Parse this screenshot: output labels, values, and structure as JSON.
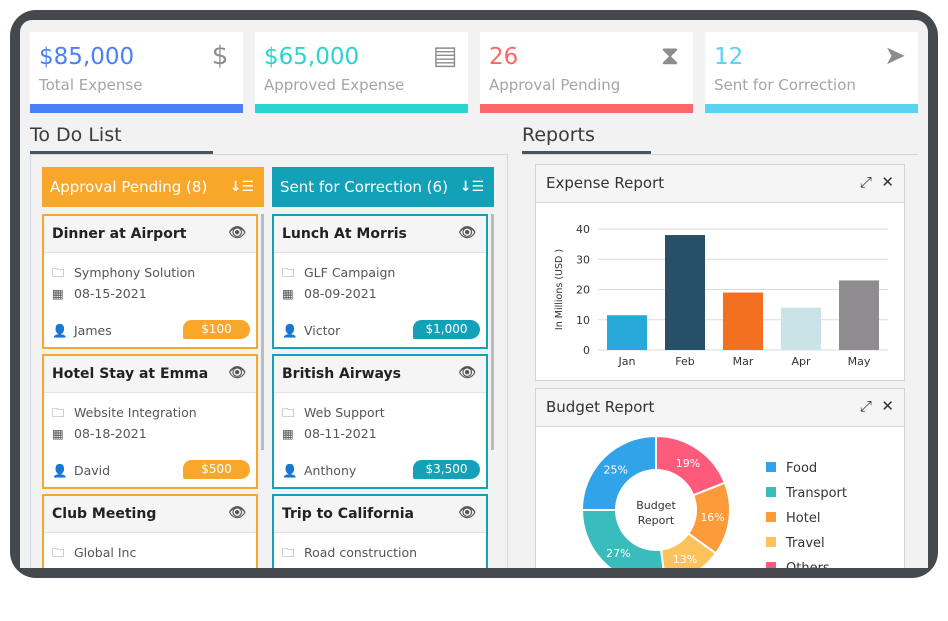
{
  "stats": [
    {
      "value": "$85,000",
      "label": "Total Expense",
      "color": "#4a80f5",
      "icon": "dollar-icon"
    },
    {
      "value": "$65,000",
      "label": "Approved Expense",
      "color": "#2ad4d0",
      "icon": "receipt-icon"
    },
    {
      "value": "26",
      "label": "Approval Pending",
      "color": "#fb6867",
      "icon": "hourglass-icon"
    },
    {
      "value": "12",
      "label": "Sent for Correction",
      "color": "#5ad3f2",
      "icon": "paper-plane-icon"
    }
  ],
  "todo": {
    "title": "To Do List",
    "columns": [
      {
        "title": "Approval Pending (8)",
        "color": "#f8a72b",
        "cards": [
          {
            "title": "Dinner at Airport",
            "project": "Symphony Solution",
            "date": "08-15-2021",
            "person": "James",
            "amount": "$100"
          },
          {
            "title": "Hotel Stay at Emma",
            "project": "Website Integration",
            "date": "08-18-2021",
            "person": "David",
            "amount": "$500"
          },
          {
            "title": "Club Meeting",
            "project": "Global Inc",
            "date": "",
            "person": "",
            "amount": ""
          }
        ]
      },
      {
        "title": "Sent for Correction (6)",
        "color": "#13a1b8",
        "cards": [
          {
            "title": "Lunch At Morris",
            "project": "GLF Campaign",
            "date": "08-09-2021",
            "person": "Victor",
            "amount": "$1,000"
          },
          {
            "title": "British Airways",
            "project": "Web Support",
            "date": "08-11-2021",
            "person": "Anthony",
            "amount": "$3,500"
          },
          {
            "title": "Trip to California",
            "project": "Road construction",
            "date": "",
            "person": "",
            "amount": ""
          }
        ]
      }
    ]
  },
  "reports": {
    "title": "Reports",
    "expense_title": "Expense Report",
    "budget_title": "Budget Report"
  },
  "chart_data": [
    {
      "type": "bar",
      "title": "Expense Report",
      "categories": [
        "Jan",
        "Feb",
        "Mar",
        "Apr",
        "May"
      ],
      "values": [
        11.5,
        38,
        19,
        14,
        23
      ],
      "colors": [
        "#27a9d9",
        "#284f68",
        "#f37021",
        "#c9e3e6",
        "#8f8c8f"
      ],
      "ylabel": "In Millions (USD )",
      "ylim": [
        0,
        40
      ],
      "yticks": [
        0,
        10,
        20,
        30,
        40
      ],
      "grid": true
    },
    {
      "type": "pie",
      "title": "Budget Report",
      "center_label": "Budget Report",
      "legend": "right",
      "slices": [
        {
          "name": "Others",
          "value": 19,
          "label": "19%",
          "color": "#fe5b7c"
        },
        {
          "name": "Hotel",
          "value": 16,
          "label": "16%",
          "color": "#fd9b3a"
        },
        {
          "name": "Travel",
          "value": 13,
          "label": "13%",
          "color": "#fdc25b"
        },
        {
          "name": "Transport",
          "value": 27,
          "label": "27%",
          "color": "#3bbcbc"
        },
        {
          "name": "Food",
          "value": 25,
          "label": "25%",
          "color": "#31a3e8"
        }
      ],
      "legend_order": [
        "Food",
        "Transport",
        "Hotel",
        "Travel",
        "Others"
      ]
    }
  ]
}
